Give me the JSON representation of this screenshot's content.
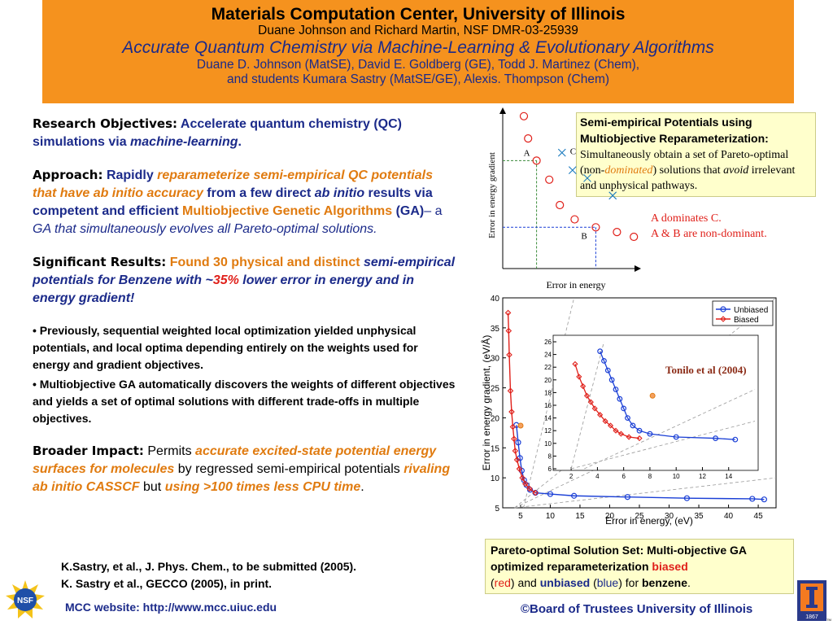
{
  "header": {
    "title": "Materials Computation Center, University of Illinois",
    "grant": "Duane Johnson and Richard Martin, NSF DMR-03-25939",
    "subtitle": "Accurate Quantum Chemistry via Machine-Learning & Evolutionary Algorithms",
    "authors1": "Duane D. Johnson (MatSE), David E. Goldberg (GE), Todd J. Martinez (Chem),",
    "authors2": "and students Kumara Sastry (MatSE/GE), Alexis. Thompson (Chem)"
  },
  "objectives": {
    "label": "Research Objectives:",
    "text1": "Accelerate quantum chemistry (QC) simulations via ",
    "text2": "machine-learning",
    "text3": "."
  },
  "approach": {
    "label": "Approach:",
    "p1": "Rapidly ",
    "p2": "reparameterize semi-empirical QC potentials that have ab initio accuracy",
    "p3": " from a few direct ",
    "p4": "ab initio",
    "p5": " results via  competent and efficient ",
    "p6": "Multiobjective Genetic Algorithms",
    "p7": " (GA)",
    "p8": "– a ",
    "p9": "GA that simultaneously evolves all Pareto-optimal solutions."
  },
  "results": {
    "label": "Significant Results:",
    "p1": "Found 30 physical and distinct ",
    "p2": "semi-empirical potentials for Benzene with ~",
    "p3": "35%",
    "p4": " lower error in energy and in energy gradient!"
  },
  "bullets": [
    "• Previously, sequential weighted local optimization yielded unphysical potentials, and local optima depending entirely on the weights used for energy and gradient objectives.",
    "• Multiobjective GA automatically discovers the weights of different objectives and yields a set of optimal solutions with different trade-offs in multiple objectives."
  ],
  "impact": {
    "label": "Broader Impact:",
    "p1": "Permits ",
    "p2": "accurate excited-state potential energy surfaces for molecules",
    "p3": " by regressed semi-empirical potentials ",
    "p4": "rivaling ab initio CASSCF",
    "p5": " but ",
    "p6": "using >100 times less CPU time",
    "p7": "."
  },
  "refs": [
    "K.Sastry, et al., J. Phys. Chem.,  to be submitted (2005).",
    "K. Sastry et al., GECCO (2005), in print."
  ],
  "mcc": "MCC website:  http://www.mcc.uiuc.edu",
  "copyright": "©Board of Trustees University of Illinois",
  "semibox": {
    "head": "Semi-empirical Potentials using Multiobjective Reparameterization:",
    "t1": "Simultaneously obtain a set of Pareto-optimal (non-",
    "t2": "dominated",
    "t3": ") solutions that ",
    "t4": "avoid",
    "t5": " irrelevant and unphysical pathways."
  },
  "dominance": {
    "l1": "A dominates C.",
    "l2": "A & B are non-dominant."
  },
  "schematic": {
    "xlabel": "Error in energy",
    "ylabel": "Error in energy gradient",
    "labels": {
      "a": "A",
      "b": "B",
      "c": "C"
    }
  },
  "pareto": {
    "t1": "Pareto-optimal Solution Set: Multi-objective GA optimized reparameterization ",
    "biased": "biased",
    "t2": "(",
    "red": "red",
    "t3": ") and ",
    "unbiased": "unbiased",
    "t4": " (",
    "blue": "blue",
    "t5": ") for ",
    "benzene": "benzene",
    "t6": "."
  },
  "logos": {
    "nsf": "NSF",
    "illinois_year": "1867",
    "tm": "TM"
  },
  "chart_data": [
    {
      "type": "scatter",
      "title": "",
      "xlabel": "Error in energy",
      "ylabel": "Error in energy gradient",
      "series": [
        {
          "name": "",
          "marker": "circle",
          "color": "#e0201a",
          "points": [
            [
              1.0,
              9.6
            ],
            [
              1.2,
              8.2
            ],
            [
              1.6,
              6.8
            ],
            [
              2.2,
              5.6
            ],
            [
              2.7,
              4.0
            ],
            [
              3.4,
              3.1
            ],
            [
              4.4,
              2.6
            ],
            [
              5.4,
              2.3
            ],
            [
              6.2,
              2.0
            ]
          ]
        },
        {
          "name": "",
          "marker": "x",
          "color": "#1b7bbf",
          "points": [
            [
              2.8,
              7.3
            ],
            [
              3.3,
              6.2
            ],
            [
              4.0,
              5.7
            ],
            [
              5.2,
              4.6
            ]
          ]
        }
      ],
      "annotations": [
        {
          "text": "A",
          "x": 1.6,
          "y": 6.8
        },
        {
          "text": "B",
          "x": 4.4,
          "y": 2.6
        },
        {
          "text": "C",
          "x": 2.8,
          "y": 7.3
        }
      ]
    },
    {
      "type": "line",
      "title": "",
      "xlabel": "Error in energy, (eV)",
      "ylabel": "Error in energy gradient, (eV/Å)",
      "xlim": [
        2,
        48
      ],
      "ylim": [
        5,
        40
      ],
      "xticks": [
        5,
        10,
        15,
        20,
        25,
        30,
        35,
        40,
        45
      ],
      "yticks": [
        5,
        10,
        15,
        20,
        25,
        30,
        35,
        40
      ],
      "legend": "top-right",
      "series": [
        {
          "name": "Unbiased",
          "color": "#1a3fd6",
          "marker": "circle",
          "points": [
            [
              4.3,
              18.8
            ],
            [
              4.6,
              15.9
            ],
            [
              4.9,
              13.3
            ],
            [
              5.2,
              11.2
            ],
            [
              5.6,
              9.6
            ],
            [
              6.0,
              8.8
            ],
            [
              6.6,
              8.0
            ],
            [
              7.5,
              7.5
            ],
            [
              10,
              7.3
            ],
            [
              14,
              7.0
            ],
            [
              23,
              6.8
            ],
            [
              33,
              6.6
            ],
            [
              44,
              6.5
            ],
            [
              46,
              6.4
            ]
          ]
        },
        {
          "name": "Biased",
          "color": "#e0201a",
          "marker": "diamond",
          "points": [
            [
              2.9,
              37.5
            ],
            [
              3.0,
              34.5
            ],
            [
              3.1,
              30.5
            ],
            [
              3.3,
              24.5
            ],
            [
              3.5,
              21.0
            ],
            [
              3.7,
              18.5
            ],
            [
              3.9,
              16.5
            ],
            [
              4.1,
              14.5
            ],
            [
              4.4,
              13.0
            ],
            [
              4.8,
              11.5
            ],
            [
              5.3,
              10.0
            ],
            [
              5.8,
              9.0
            ],
            [
              6.5,
              8.2
            ],
            [
              7.5,
              7.5
            ]
          ]
        }
      ]
    },
    {
      "type": "line",
      "title": "Tonilo et al (2004)",
      "xlabel": "",
      "ylabel": "",
      "xlim": [
        1,
        16
      ],
      "ylim": [
        6,
        26
      ],
      "xticks": [
        2,
        4,
        6,
        8,
        10,
        12,
        14
      ],
      "yticks": [
        6,
        8,
        10,
        12,
        14,
        16,
        18,
        20,
        22,
        24,
        26
      ],
      "series": [
        {
          "name": "Unbiased",
          "color": "#1a3fd6",
          "marker": "circle",
          "points": [
            [
              4.2,
              24.5
            ],
            [
              4.5,
              23.0
            ],
            [
              4.8,
              21.5
            ],
            [
              5.1,
              20.0
            ],
            [
              5.4,
              18.5
            ],
            [
              5.7,
              17.0
            ],
            [
              6.0,
              15.5
            ],
            [
              6.3,
              14.0
            ],
            [
              6.7,
              12.8
            ],
            [
              7.2,
              12.0
            ],
            [
              8,
              11.5
            ],
            [
              10,
              11.0
            ],
            [
              13,
              10.8
            ],
            [
              14.5,
              10.6
            ]
          ]
        },
        {
          "name": "Biased",
          "color": "#e0201a",
          "marker": "diamond",
          "points": [
            [
              2.3,
              22.5
            ],
            [
              2.6,
              20.5
            ],
            [
              2.9,
              19.0
            ],
            [
              3.2,
              17.5
            ],
            [
              3.5,
              16.5
            ],
            [
              3.8,
              15.5
            ],
            [
              4.2,
              14.5
            ],
            [
              4.6,
              13.5
            ],
            [
              5.0,
              12.8
            ],
            [
              5.4,
              12.0
            ],
            [
              5.8,
              11.5
            ],
            [
              6.4,
              11.0
            ],
            [
              7.2,
              10.8
            ]
          ]
        }
      ],
      "annotations": [
        {
          "text": "Tonilo et al (2004)",
          "x": 8.2,
          "y": 17.5
        }
      ]
    }
  ]
}
